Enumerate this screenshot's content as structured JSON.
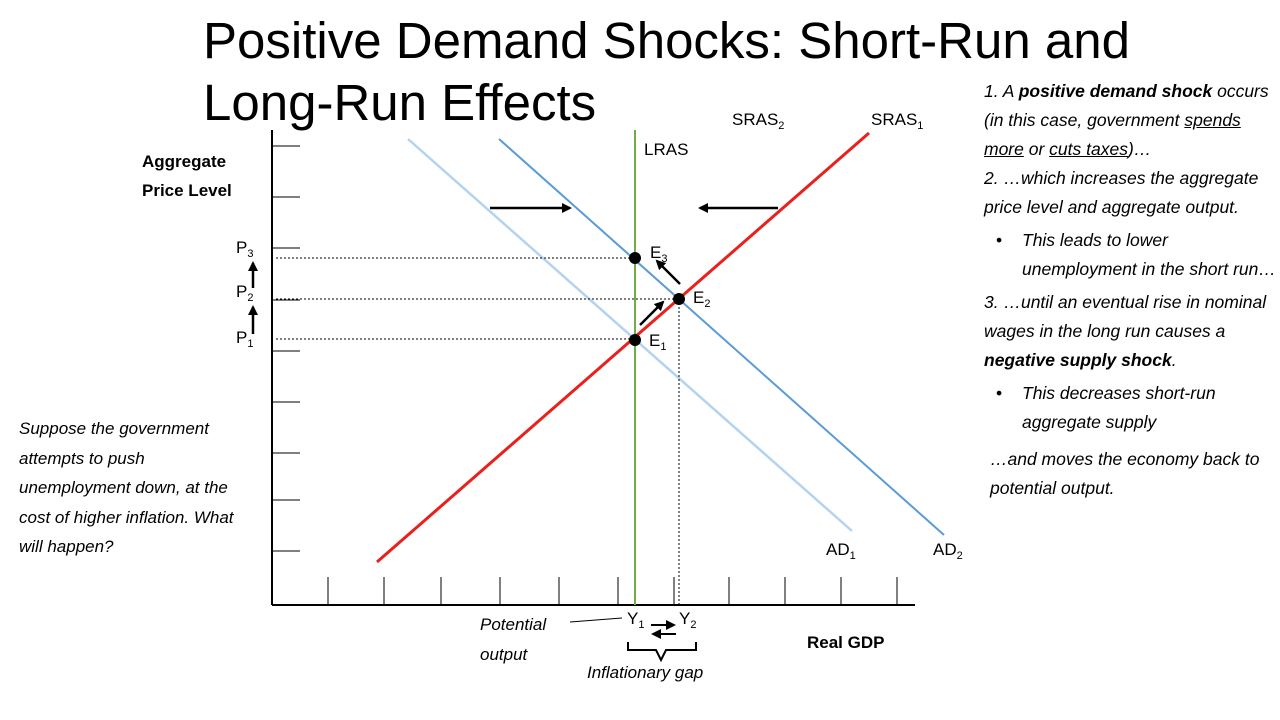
{
  "slide": {
    "title": "Positive Demand Shocks: Short-Run and\nLong-Run Effects"
  },
  "diagram": {
    "y_axis_label_line1": "Aggregate",
    "y_axis_label_line2": "Price Level",
    "x_axis_label": "Real GDP",
    "curves": {
      "lras": "LRAS",
      "sras1": "SRAS",
      "sras1_sub": "1",
      "sras2": "SRAS",
      "sras2_sub": "2",
      "ad1": "AD",
      "ad1_sub": "1",
      "ad2": "AD",
      "ad2_sub": "2"
    },
    "prices": [
      {
        "label": "P",
        "sub": "3"
      },
      {
        "label": "P",
        "sub": "2"
      },
      {
        "label": "P",
        "sub": "1"
      }
    ],
    "equilibria": [
      {
        "label": "E",
        "sub": "3"
      },
      {
        "label": "E",
        "sub": "2"
      },
      {
        "label": "E",
        "sub": "1"
      }
    ],
    "outputs": [
      {
        "label": "Y",
        "sub": "1"
      },
      {
        "label": "Y",
        "sub": "2"
      }
    ],
    "potential_output_line1": "Potential",
    "potential_output_line2": "output",
    "inflationary_gap": "Inflationary gap",
    "colors": {
      "sras": "#e8211d",
      "ad2_sras2": "#5b9bd5",
      "ad1": "#b4d3ee",
      "lras": "#70ad47",
      "axes": "#000000"
    }
  },
  "side_note": "Suppose the government attempts to push unemployment down, at the cost of higher inflation.  What will happen?",
  "notes": {
    "p1_a": "1. A ",
    "p1_b": "positive demand shock",
    "p1_c": " occurs (in this case, government ",
    "p1_d": "spends more",
    "p1_e": " or ",
    "p1_f": "cuts taxes",
    "p1_g": ")…",
    "p2": "2. …which increases the aggregate price level and aggregate output.",
    "p2_bullet": "This leads to lower unemployment in the short run…",
    "p3_a": "3. …until an eventual rise in nominal wages in the long run causes a ",
    "p3_b": "negative supply shock",
    "p3_c": ".",
    "p3_bullet": "This decreases short-run aggregate supply",
    "p4": "…and moves the economy back to potential output."
  }
}
